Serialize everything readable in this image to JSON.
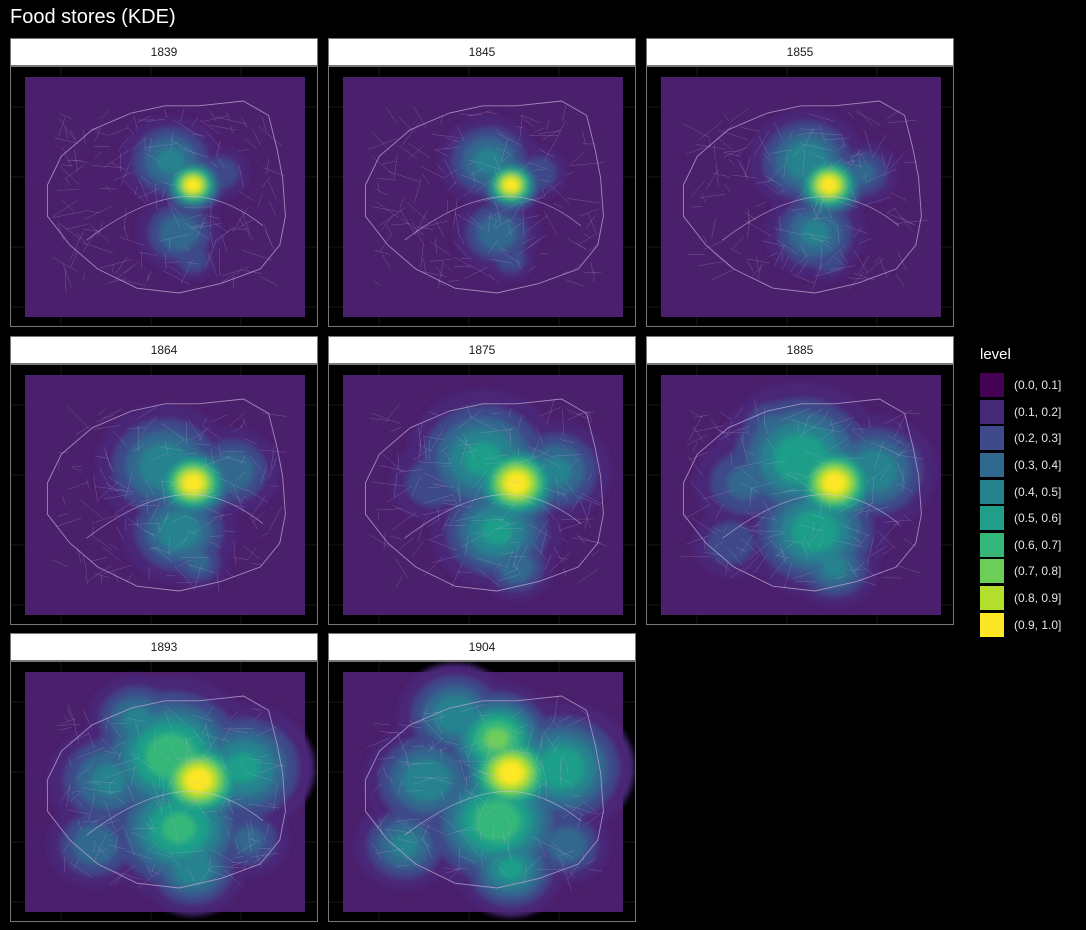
{
  "title": "Food stores (KDE)",
  "chart_data": {
    "type": "heatmap",
    "title": "Food stores (KDE)",
    "facets": [
      {
        "label": "1839",
        "peak": [
          0.6,
          0.45
        ],
        "spread": 0.55,
        "hotspots": [
          [
            0.6,
            0.45,
            1.0,
            0.05
          ],
          [
            0.52,
            0.35,
            0.45,
            0.09
          ],
          [
            0.55,
            0.65,
            0.4,
            0.08
          ],
          [
            0.6,
            0.76,
            0.3,
            0.05
          ],
          [
            0.7,
            0.4,
            0.3,
            0.06
          ]
        ]
      },
      {
        "label": "1845",
        "peak": [
          0.6,
          0.45
        ],
        "spread": 0.55,
        "hotspots": [
          [
            0.6,
            0.45,
            1.0,
            0.05
          ],
          [
            0.52,
            0.35,
            0.45,
            0.09
          ],
          [
            0.55,
            0.65,
            0.4,
            0.08
          ],
          [
            0.6,
            0.76,
            0.3,
            0.05
          ],
          [
            0.7,
            0.4,
            0.3,
            0.06
          ]
        ]
      },
      {
        "label": "1855",
        "peak": [
          0.6,
          0.45
        ],
        "spread": 0.6,
        "hotspots": [
          [
            0.6,
            0.45,
            1.0,
            0.06
          ],
          [
            0.52,
            0.35,
            0.5,
            0.1
          ],
          [
            0.55,
            0.65,
            0.45,
            0.09
          ],
          [
            0.6,
            0.76,
            0.3,
            0.05
          ],
          [
            0.72,
            0.4,
            0.35,
            0.07
          ]
        ]
      },
      {
        "label": "1864",
        "peak": [
          0.6,
          0.45
        ],
        "spread": 0.7,
        "hotspots": [
          [
            0.6,
            0.45,
            1.0,
            0.07
          ],
          [
            0.5,
            0.38,
            0.5,
            0.12
          ],
          [
            0.55,
            0.65,
            0.5,
            0.1
          ],
          [
            0.62,
            0.78,
            0.35,
            0.06
          ],
          [
            0.74,
            0.4,
            0.4,
            0.09
          ],
          [
            0.38,
            0.45,
            0.2,
            0.08
          ]
        ]
      },
      {
        "label": "1875",
        "peak": [
          0.62,
          0.45
        ],
        "spread": 0.8,
        "hotspots": [
          [
            0.62,
            0.45,
            1.0,
            0.08
          ],
          [
            0.5,
            0.35,
            0.55,
            0.13
          ],
          [
            0.55,
            0.65,
            0.55,
            0.11
          ],
          [
            0.62,
            0.8,
            0.4,
            0.07
          ],
          [
            0.76,
            0.4,
            0.45,
            0.1
          ],
          [
            0.32,
            0.45,
            0.3,
            0.09
          ],
          [
            0.4,
            0.25,
            0.3,
            0.07
          ]
        ]
      },
      {
        "label": "1885",
        "peak": [
          0.62,
          0.45
        ],
        "spread": 0.85,
        "hotspots": [
          [
            0.62,
            0.45,
            1.0,
            0.08
          ],
          [
            0.5,
            0.35,
            0.6,
            0.14
          ],
          [
            0.55,
            0.65,
            0.6,
            0.12
          ],
          [
            0.62,
            0.8,
            0.45,
            0.08
          ],
          [
            0.76,
            0.4,
            0.5,
            0.11
          ],
          [
            0.3,
            0.45,
            0.35,
            0.1
          ],
          [
            0.4,
            0.22,
            0.35,
            0.08
          ],
          [
            0.25,
            0.7,
            0.3,
            0.08
          ]
        ]
      },
      {
        "label": "1893",
        "peak": [
          0.62,
          0.45
        ],
        "spread": 0.9,
        "hotspots": [
          [
            0.62,
            0.45,
            1.0,
            0.09
          ],
          [
            0.52,
            0.35,
            0.7,
            0.14
          ],
          [
            0.55,
            0.65,
            0.65,
            0.13
          ],
          [
            0.6,
            0.82,
            0.5,
            0.09
          ],
          [
            0.78,
            0.4,
            0.55,
            0.12
          ],
          [
            0.3,
            0.45,
            0.45,
            0.11
          ],
          [
            0.4,
            0.2,
            0.45,
            0.09
          ],
          [
            0.25,
            0.72,
            0.4,
            0.09
          ],
          [
            0.8,
            0.7,
            0.35,
            0.08
          ]
        ]
      },
      {
        "label": "1904",
        "peak": [
          0.6,
          0.42
        ],
        "spread": 0.95,
        "hotspots": [
          [
            0.6,
            0.42,
            1.0,
            0.09
          ],
          [
            0.55,
            0.28,
            0.75,
            0.1
          ],
          [
            0.55,
            0.62,
            0.7,
            0.13
          ],
          [
            0.6,
            0.82,
            0.55,
            0.09
          ],
          [
            0.78,
            0.4,
            0.6,
            0.12
          ],
          [
            0.3,
            0.45,
            0.5,
            0.11
          ],
          [
            0.4,
            0.18,
            0.5,
            0.1
          ],
          [
            0.22,
            0.72,
            0.45,
            0.09
          ],
          [
            0.8,
            0.72,
            0.4,
            0.08
          ]
        ]
      }
    ],
    "legend": {
      "title": "level",
      "placement": "right",
      "items": [
        {
          "label": "(0.0, 0.1]",
          "color": "#440154"
        },
        {
          "label": "(0.1, 0.2]",
          "color": "#482878"
        },
        {
          "label": "(0.2, 0.3]",
          "color": "#3E4A89"
        },
        {
          "label": "(0.3, 0.4]",
          "color": "#31688E"
        },
        {
          "label": "(0.4, 0.5]",
          "color": "#26828E"
        },
        {
          "label": "(0.5, 0.6]",
          "color": "#1F9E89"
        },
        {
          "label": "(0.6, 0.7]",
          "color": "#35B779"
        },
        {
          "label": "(0.7, 0.8]",
          "color": "#6DCD59"
        },
        {
          "label": "(0.8, 0.9]",
          "color": "#B4DE2C"
        },
        {
          "label": "(0.9, 1.0]",
          "color": "#FDE725"
        }
      ]
    },
    "background_color": "#000000",
    "basemap_color": "#4a1f6b"
  }
}
